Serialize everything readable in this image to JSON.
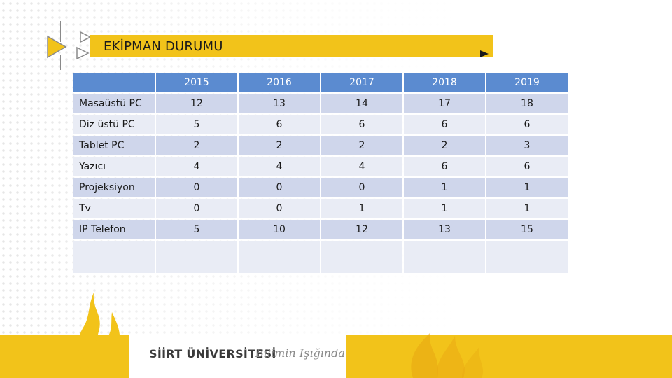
{
  "slide": {
    "title": "EKİPMAN DURUMU"
  },
  "table": {
    "columns": [
      "",
      "2015",
      "2016",
      "2017",
      "2018",
      "2019"
    ],
    "rows": [
      {
        "label": "Masaüstü PC",
        "values": [
          "12",
          "13",
          "14",
          "17",
          "18"
        ]
      },
      {
        "label": "Diz üstü PC",
        "values": [
          "5",
          "6",
          "6",
          "6",
          "6"
        ]
      },
      {
        "label": "Tablet PC",
        "values": [
          "2",
          "2",
          "2",
          "2",
          "3"
        ]
      },
      {
        "label": "Yazıcı",
        "values": [
          "4",
          "4",
          "4",
          "6",
          "6"
        ]
      },
      {
        "label": "Projeksiyon",
        "values": [
          "0",
          "0",
          "0",
          "1",
          "1"
        ]
      },
      {
        "label": "Tv",
        "values": [
          "0",
          "0",
          "1",
          "1",
          "1"
        ]
      },
      {
        "label": "IP Telefon",
        "values": [
          "5",
          "10",
          "12",
          "13",
          "15"
        ]
      }
    ]
  },
  "footer": {
    "university": "SİİRT ÜNİVERSİTESİ",
    "slogan": "Bilimin Işığında"
  },
  "icons": {
    "flame_logo": "flame-logo-icon",
    "play_arrows": "play-triangle-icon"
  },
  "colors": {
    "accent_yellow": "#f2c31a",
    "header_blue": "#5b8bd0",
    "row_light": "#e9ecf5",
    "row_dark": "#cfd6eb"
  }
}
